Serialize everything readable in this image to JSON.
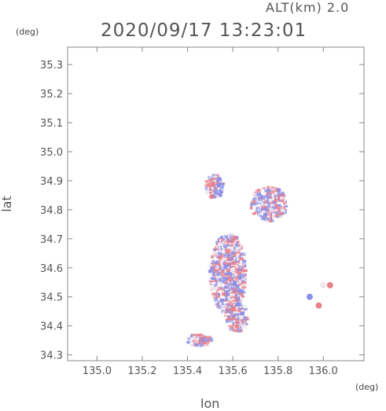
{
  "header": {
    "altitude": "ALT(km) 2.0",
    "timestamp": "2020/09/17 13:23:01"
  },
  "axes": {
    "y_unit": "(deg)",
    "x_unit": "(deg)",
    "y_label": "lat",
    "x_label": "lon"
  },
  "chart_data": {
    "type": "heatmap",
    "xlabel": "lon",
    "ylabel": "lat",
    "xlim": [
      134.87,
      136.18
    ],
    "ylim": [
      34.28,
      35.36
    ],
    "x_ticks": [
      {
        "v": 135.0,
        "label": "135.0"
      },
      {
        "v": 135.2,
        "label": "135.2"
      },
      {
        "v": 135.4,
        "label": "135.4"
      },
      {
        "v": 135.6,
        "label": "135.6"
      },
      {
        "v": 135.8,
        "label": "135.8"
      },
      {
        "v": 136.0,
        "label": "136.0"
      }
    ],
    "y_ticks": [
      {
        "v": 34.3,
        "label": "34.3"
      },
      {
        "v": 34.4,
        "label": "34.4"
      },
      {
        "v": 34.5,
        "label": "34.5"
      },
      {
        "v": 34.6,
        "label": "34.6"
      },
      {
        "v": 34.7,
        "label": "34.7"
      },
      {
        "v": 34.8,
        "label": "34.8"
      },
      {
        "v": 34.9,
        "label": "34.9"
      },
      {
        "v": 35.0,
        "label": "35.0"
      },
      {
        "v": 35.1,
        "label": "35.1"
      },
      {
        "v": 35.2,
        "label": "35.2"
      },
      {
        "v": 35.3,
        "label": "35.3"
      }
    ],
    "colors": {
      "positive": "#e8808a",
      "negative": "#8a90e8",
      "neutral": "#f0e8f0"
    },
    "regions": [
      {
        "name": "main-cluster",
        "lon": 135.58,
        "lat": 34.58,
        "rlon": 0.08,
        "rlat": 0.14
      },
      {
        "name": "lower-tail",
        "lon": 135.62,
        "lat": 34.43,
        "rlon": 0.05,
        "rlat": 0.05
      },
      {
        "name": "north-east-cluster",
        "lon": 135.76,
        "lat": 34.82,
        "rlon": 0.08,
        "rlat": 0.06
      },
      {
        "name": "north-cluster",
        "lon": 135.52,
        "lat": 34.88,
        "rlon": 0.04,
        "rlat": 0.04
      },
      {
        "name": "south-west-strip",
        "lon": 135.45,
        "lat": 34.35,
        "rlon": 0.06,
        "rlat": 0.02
      }
    ],
    "isolated": [
      {
        "lon": 135.94,
        "lat": 34.5,
        "sign": -1
      },
      {
        "lon": 135.98,
        "lat": 34.47,
        "sign": 1
      },
      {
        "lon": 136.03,
        "lat": 34.54,
        "sign": 1
      },
      {
        "lon": 136.0,
        "lat": 34.54,
        "sign": 0
      }
    ]
  }
}
